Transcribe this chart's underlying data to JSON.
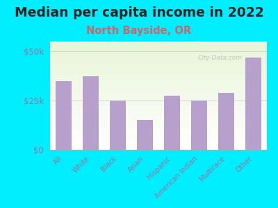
{
  "title": "Median per capita income in 2022",
  "subtitle": "North Bayside, OR",
  "categories": [
    "All",
    "White",
    "Black",
    "Asian",
    "Hispanic",
    "American Indian",
    "Multirace",
    "Other"
  ],
  "values": [
    35000,
    37500,
    25000,
    15000,
    27500,
    25000,
    29000,
    47000
  ],
  "bar_color": "#b8a0cc",
  "background_outer": "#00eeff",
  "title_color": "#222222",
  "subtitle_color": "#cc6666",
  "tick_label_color": "#997799",
  "ylim": [
    0,
    55000
  ],
  "yticks": [
    0,
    25000,
    50000
  ],
  "ytick_labels": [
    "$0",
    "$25k",
    "$50k"
  ],
  "title_fontsize": 13.5,
  "subtitle_fontsize": 10.5,
  "watermark": "City-Data.com"
}
